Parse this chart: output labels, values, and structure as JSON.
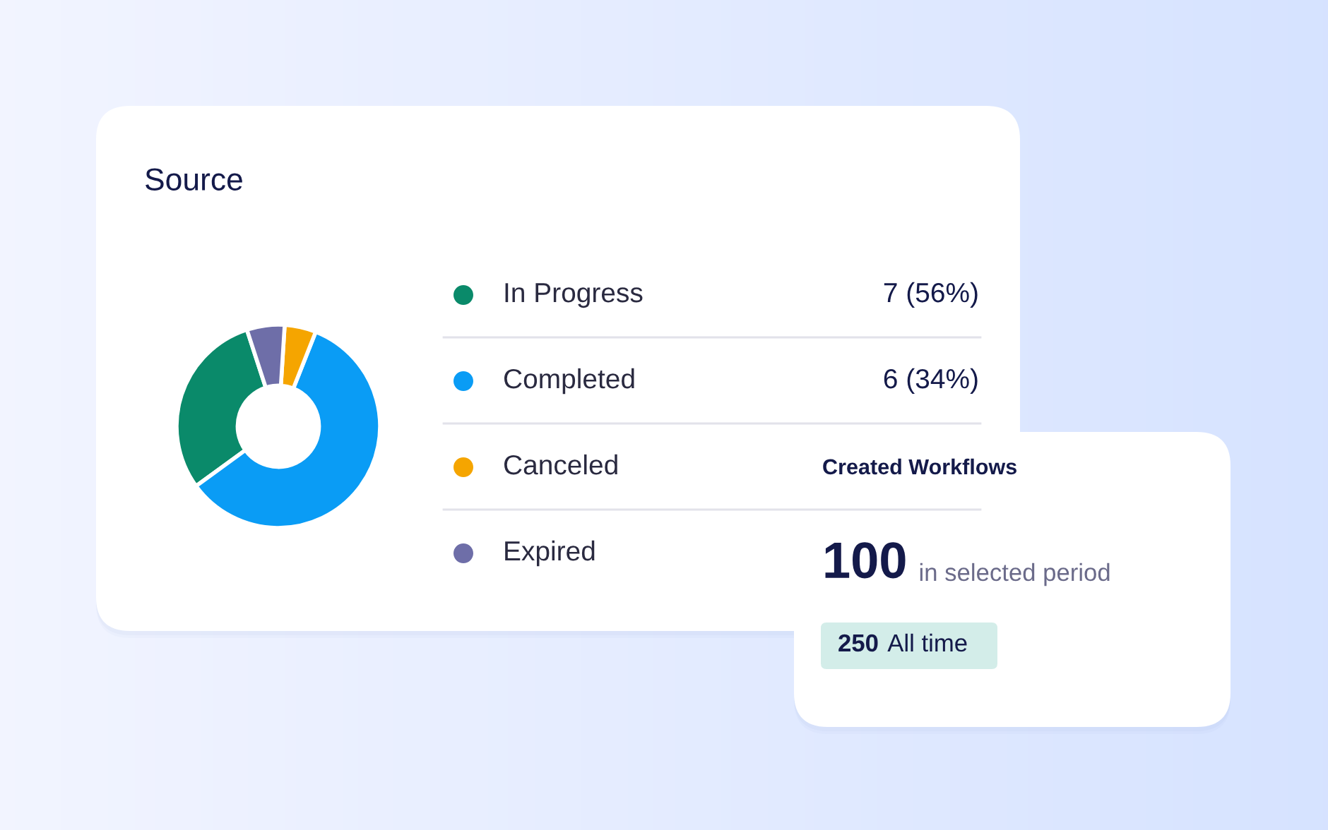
{
  "chart_data": [
    {
      "type": "donut",
      "title": "Source",
      "categories": [
        "In Progress",
        "Completed",
        "Canceled",
        "Expired"
      ],
      "values": [
        30,
        59,
        5,
        6
      ],
      "colors": [
        "#0a8a6a",
        "#0a9cf5",
        "#f5a500",
        "#6e6ea8"
      ],
      "annotations": [
        "7 (56%)",
        "6 (34%)"
      ],
      "legend": "right"
    },
    {
      "type": "other",
      "title": "Created Workflows",
      "annotations": [
        "100",
        "in selected period",
        "250",
        "All time"
      ]
    }
  ]
}
